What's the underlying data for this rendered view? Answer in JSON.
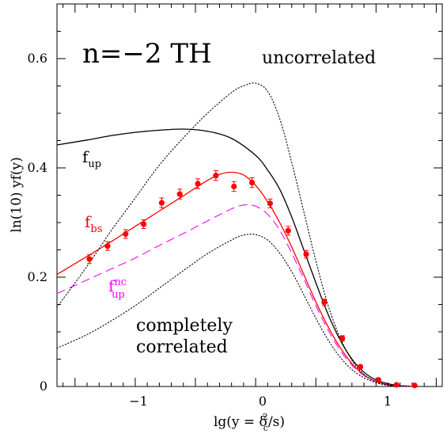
{
  "chart_data": {
    "type": "line",
    "panel_label": "n=−2 TH",
    "xlabel": {
      "main": "lg(y = δ",
      "sub": "c",
      "sup": "2",
      "tail": "/s)"
    },
    "ylabel": "ln(10)  yf(y)",
    "xlim": [
      -1.65,
      1.55
    ],
    "ylim": [
      0,
      0.7
    ],
    "x_ticks": [
      -1,
      0,
      1
    ],
    "x_tick_labels": [
      "−1",
      "0",
      "1"
    ],
    "y_ticks": [
      0,
      0.2,
      0.4,
      0.6
    ],
    "y_tick_labels": [
      "0",
      "0.2",
      "0.4",
      "0.6"
    ],
    "annotations": {
      "uncorrelated": "uncorrelated",
      "f_up": {
        "base": "f",
        "sub": "up"
      },
      "f_bs": {
        "base": "f",
        "sub": "bs"
      },
      "f_up_nc": {
        "base": "f",
        "sub": "up",
        "sup": "nc"
      },
      "completely_1": "completely",
      "completely_2": "correlated"
    },
    "colors": {
      "red": "#ff0000",
      "magenta": "#ff00ff",
      "black": "#000000"
    },
    "series": [
      {
        "id": "f_up",
        "style": "solid",
        "color": "#000000",
        "x": [
          -1.65,
          -1.4,
          -1.2,
          -1.0,
          -0.8,
          -0.6,
          -0.4,
          -0.2,
          0.0,
          0.1,
          0.2,
          0.3,
          0.4,
          0.5,
          0.6,
          0.7,
          0.8,
          0.9,
          1.0,
          1.1,
          1.2,
          1.3,
          1.35
        ],
        "y": [
          0.442,
          0.451,
          0.459,
          0.465,
          0.469,
          0.471,
          0.467,
          0.454,
          0.423,
          0.396,
          0.361,
          0.31,
          0.25,
          0.19,
          0.133,
          0.086,
          0.05,
          0.026,
          0.012,
          0.005,
          0.0015,
          0.0004,
          0.0
        ]
      },
      {
        "id": "f_bs",
        "style": "solid",
        "color": "#ff0000",
        "x": [
          -1.65,
          -1.4,
          -1.2,
          -1.0,
          -0.8,
          -0.6,
          -0.4,
          -0.3,
          -0.2,
          -0.1,
          0.0,
          0.1,
          0.2,
          0.3,
          0.4,
          0.5,
          0.6,
          0.7,
          0.8,
          0.9,
          1.0,
          1.1,
          1.2,
          1.3,
          1.35
        ],
        "y": [
          0.205,
          0.238,
          0.265,
          0.293,
          0.321,
          0.349,
          0.377,
          0.388,
          0.392,
          0.387,
          0.368,
          0.338,
          0.3,
          0.255,
          0.205,
          0.155,
          0.11,
          0.072,
          0.042,
          0.021,
          0.009,
          0.003,
          0.001,
          0.0002,
          0.0
        ]
      },
      {
        "id": "f_up_nc",
        "style": "dashed",
        "color": "#ff00ff",
        "x": [
          -1.65,
          -1.4,
          -1.2,
          -1.0,
          -0.8,
          -0.6,
          -0.4,
          -0.2,
          -0.1,
          0.0,
          0.1,
          0.2,
          0.3,
          0.4,
          0.5,
          0.6,
          0.7,
          0.8,
          0.9,
          1.0,
          1.1,
          1.2,
          1.3,
          1.35
        ],
        "y": [
          0.17,
          0.195,
          0.215,
          0.235,
          0.258,
          0.28,
          0.303,
          0.325,
          0.332,
          0.33,
          0.315,
          0.286,
          0.244,
          0.197,
          0.148,
          0.104,
          0.067,
          0.039,
          0.02,
          0.009,
          0.003,
          0.001,
          0.0002,
          0.0
        ]
      },
      {
        "id": "uncorrelated",
        "style": "dotted",
        "color": "#000000",
        "x": [
          -1.65,
          -1.4,
          -1.2,
          -1.0,
          -0.8,
          -0.6,
          -0.4,
          -0.2,
          -0.1,
          0.0,
          0.1,
          0.2,
          0.3,
          0.4,
          0.5,
          0.6,
          0.7,
          0.8,
          0.9,
          1.0,
          1.1,
          1.2,
          1.35
        ],
        "y": [
          0.145,
          0.22,
          0.285,
          0.345,
          0.405,
          0.455,
          0.5,
          0.538,
          0.55,
          0.555,
          0.54,
          0.49,
          0.41,
          0.32,
          0.23,
          0.15,
          0.09,
          0.048,
          0.022,
          0.009,
          0.003,
          0.001,
          0.0
        ]
      },
      {
        "id": "completely_correlated",
        "style": "dotted",
        "color": "#000000",
        "x": [
          -1.65,
          -1.4,
          -1.2,
          -1.0,
          -0.8,
          -0.6,
          -0.4,
          -0.2,
          -0.1,
          0.0,
          0.1,
          0.2,
          0.3,
          0.4,
          0.5,
          0.6,
          0.7,
          0.8,
          0.9,
          1.0,
          1.1,
          1.2,
          1.35
        ],
        "y": [
          0.07,
          0.095,
          0.12,
          0.148,
          0.18,
          0.212,
          0.243,
          0.268,
          0.277,
          0.278,
          0.268,
          0.244,
          0.21,
          0.168,
          0.125,
          0.086,
          0.054,
          0.031,
          0.016,
          0.007,
          0.002,
          0.0006,
          0.0
        ]
      }
    ],
    "points": {
      "color": "#ff0000",
      "x": [
        -1.38,
        -1.23,
        -1.08,
        -0.93,
        -0.78,
        -0.63,
        -0.48,
        -0.33,
        -0.18,
        -0.03,
        0.12,
        0.27,
        0.42,
        0.57,
        0.72,
        0.87,
        1.02,
        1.17,
        1.32
      ],
      "y": [
        0.233,
        0.257,
        0.279,
        0.297,
        0.336,
        0.352,
        0.371,
        0.386,
        0.366,
        0.373,
        0.335,
        0.285,
        0.242,
        0.154,
        0.088,
        0.036,
        0.012,
        0.003,
        0.002
      ],
      "err": [
        0.008,
        0.008,
        0.008,
        0.008,
        0.009,
        0.009,
        0.009,
        0.009,
        0.009,
        0.009,
        0.008,
        0.008,
        0.007,
        0.006,
        0.005,
        0.003,
        0.002,
        0.0,
        0.0
      ]
    }
  }
}
